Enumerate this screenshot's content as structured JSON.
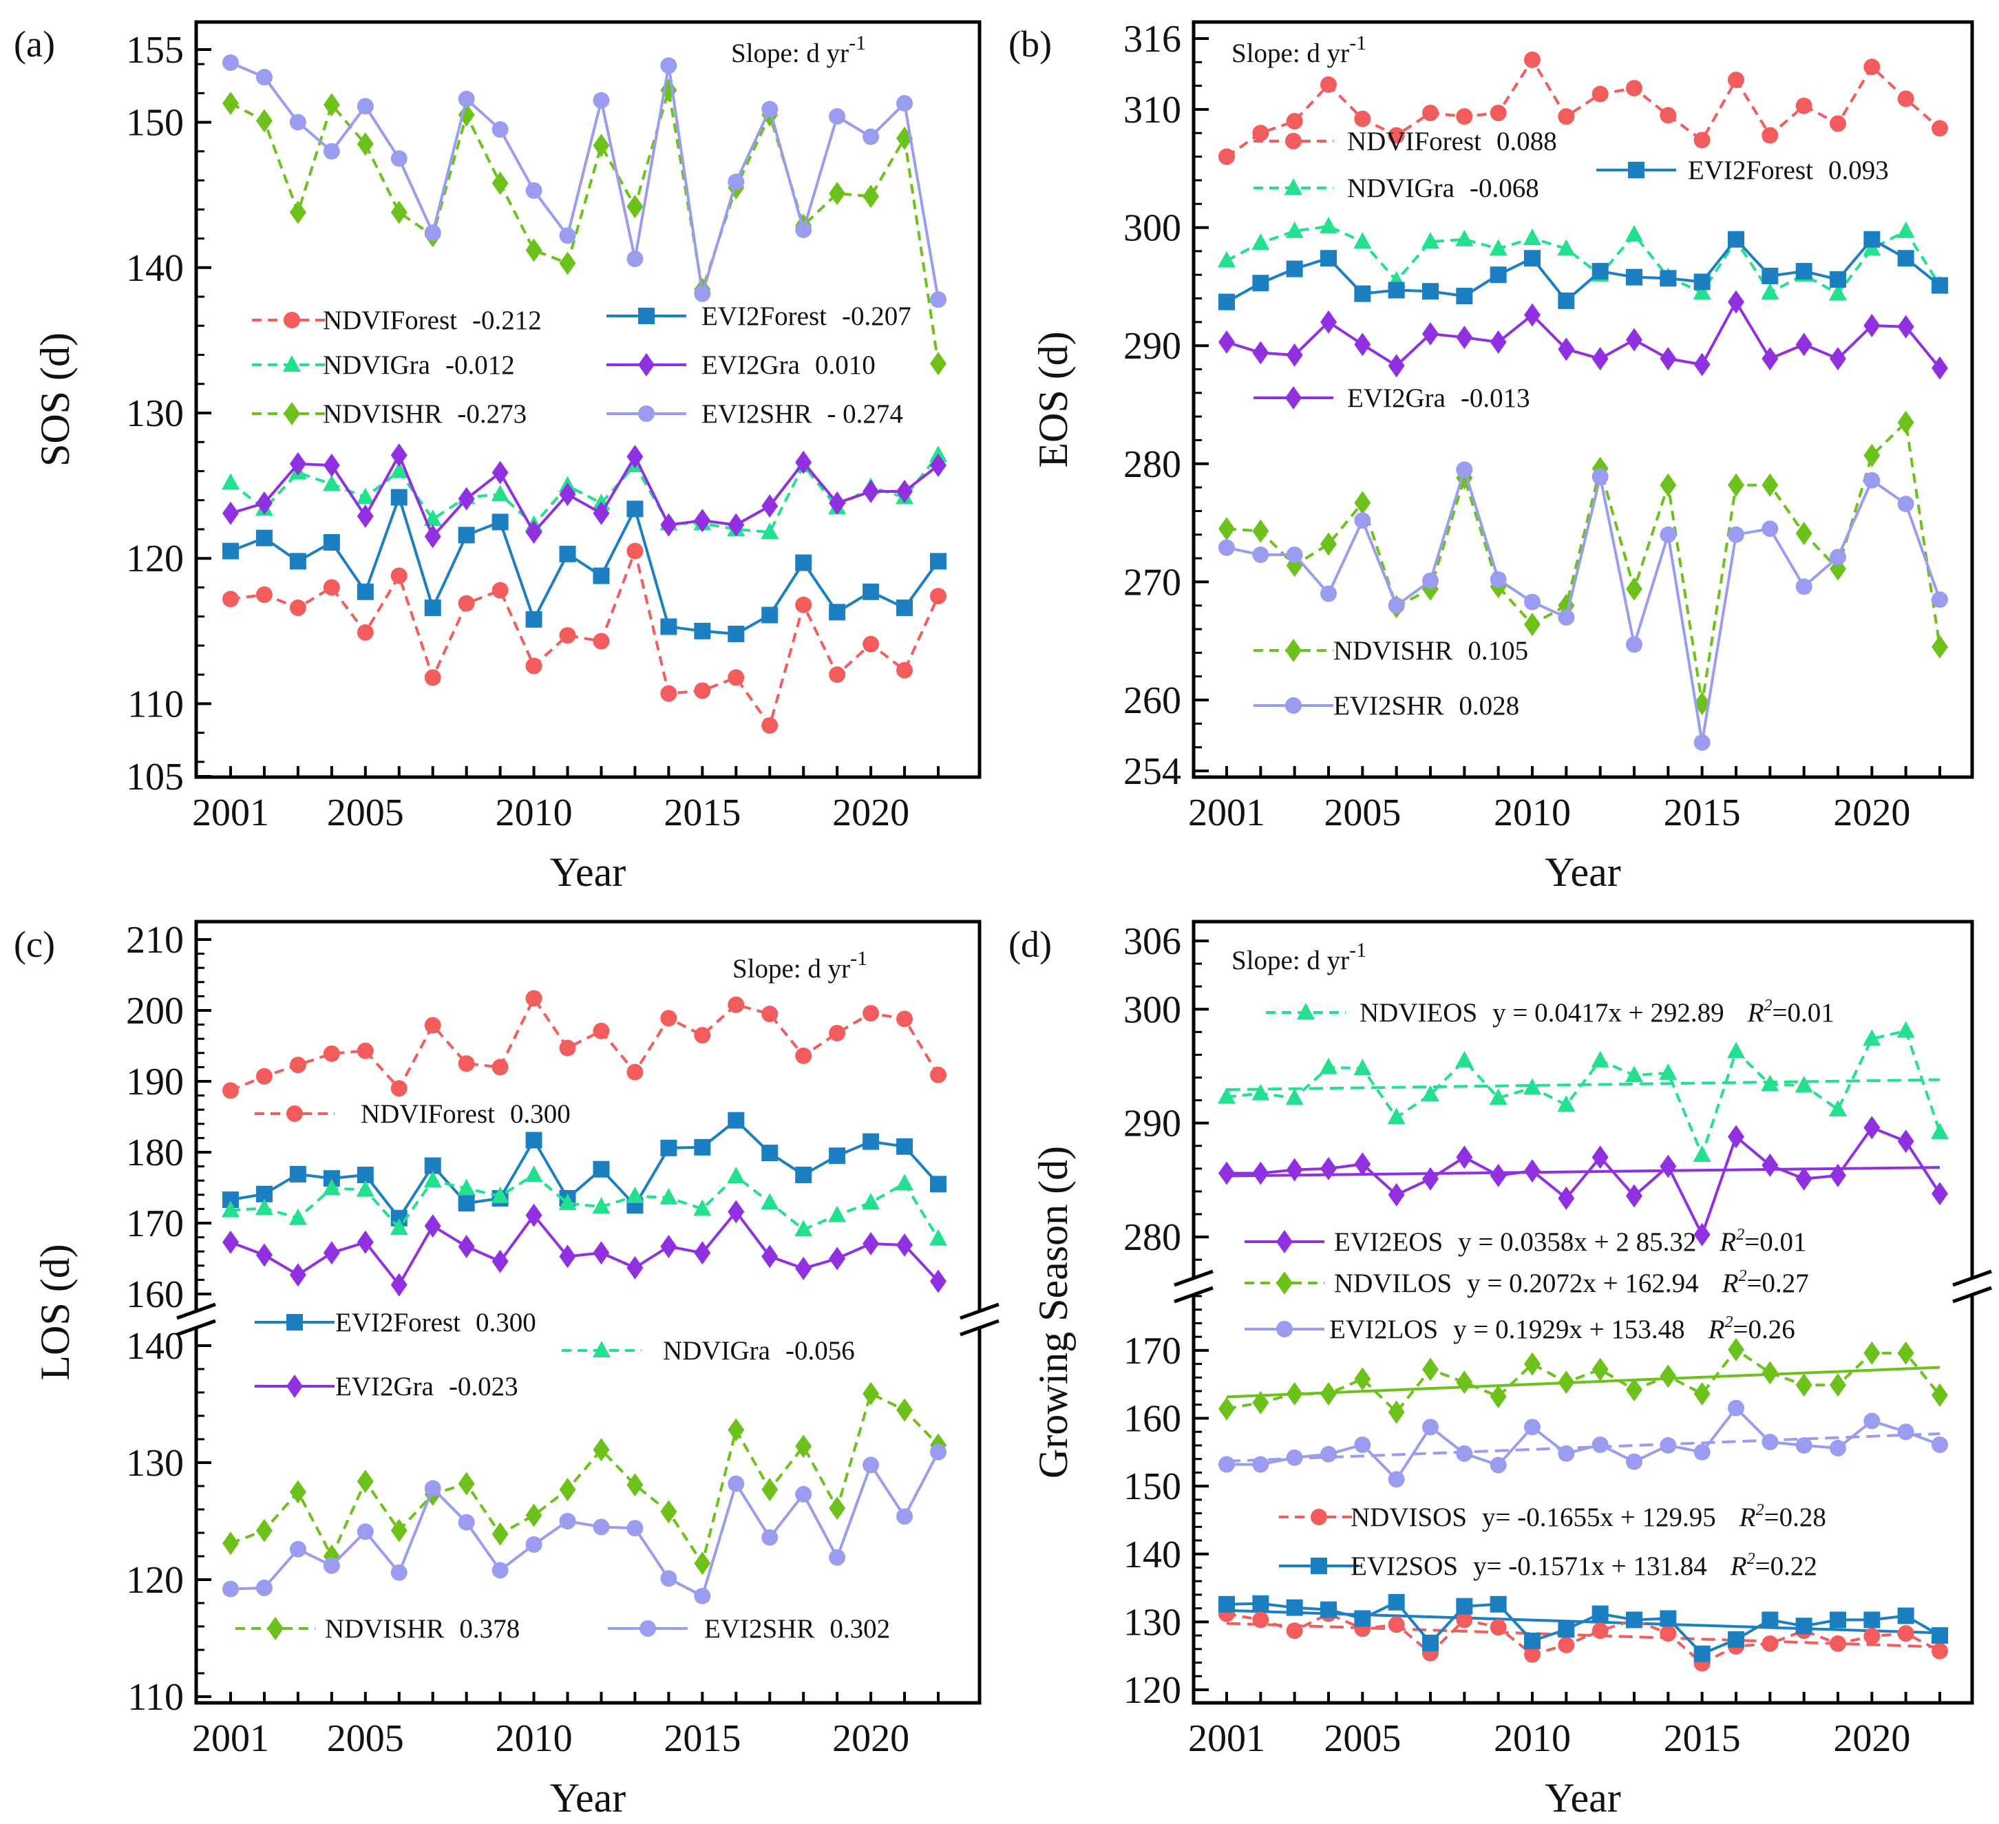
{
  "chart_data": [
    {
      "id": "a",
      "type": "line",
      "panel_label": "(a)",
      "xlabel": "Year",
      "ylabel": "SOS (d)",
      "slope_label": "Slope: d yr",
      "slope_sup": "-1",
      "x": [
        2001,
        2002,
        2003,
        2004,
        2005,
        2006,
        2007,
        2008,
        2009,
        2010,
        2011,
        2012,
        2013,
        2014,
        2015,
        2016,
        2017,
        2018,
        2019,
        2020,
        2021,
        2022
      ],
      "xticks": [
        "2001",
        "2005",
        "2010",
        "2015",
        "2020"
      ],
      "yticks": [
        105,
        110,
        120,
        130,
        140,
        150,
        155
      ],
      "ylim": [
        105,
        155
      ],
      "y_minor_step": 2,
      "series": [
        {
          "name": "NDVIForest",
          "slope": "-0.212",
          "color": "#f25c5c",
          "dash": true,
          "marker": "circle",
          "values": [
            117.2,
            117.5,
            116.6,
            118.0,
            114.9,
            118.8,
            111.8,
            116.9,
            117.8,
            112.6,
            114.7,
            114.3,
            120.5,
            110.7,
            110.9,
            111.8,
            108.5,
            116.8,
            112.0,
            114.1,
            112.3,
            117.4
          ]
        },
        {
          "name": "EVI2Forest",
          "slope": "-0.207",
          "color": "#1b7fc2",
          "dash": false,
          "marker": "square",
          "values": [
            120.5,
            121.4,
            119.8,
            121.1,
            117.7,
            124.2,
            116.6,
            121.6,
            122.5,
            115.8,
            120.3,
            118.8,
            123.4,
            115.3,
            115.0,
            114.8,
            116.1,
            119.7,
            116.3,
            117.7,
            116.6,
            119.8
          ]
        },
        {
          "name": "NDVIGra",
          "slope": "-0.012",
          "color": "#22e08e",
          "dash": true,
          "marker": "triangle",
          "values": [
            125.2,
            123.4,
            125.9,
            125.1,
            124.2,
            126.0,
            122.7,
            124.2,
            124.4,
            122.3,
            125.0,
            123.8,
            126.4,
            122.4,
            122.4,
            122.0,
            121.8,
            126.4,
            123.5,
            124.9,
            124.2,
            127.1
          ]
        },
        {
          "name": "EVI2Gra",
          "slope": "0.010",
          "color": "#9030e0",
          "dash": false,
          "marker": "diamond",
          "values": [
            123.1,
            123.8,
            126.5,
            126.4,
            122.9,
            127.1,
            121.5,
            124.1,
            125.9,
            121.8,
            124.4,
            123.1,
            127.0,
            122.3,
            122.6,
            122.3,
            123.6,
            126.6,
            123.8,
            124.6,
            124.6,
            126.4
          ]
        },
        {
          "name": "NDVISHR",
          "slope": "-0.273",
          "color": "#6cc21a",
          "dash": true,
          "marker": "diamond",
          "values": [
            151.3,
            150.1,
            143.8,
            151.2,
            148.5,
            143.8,
            142.2,
            150.5,
            145.8,
            141.2,
            140.3,
            148.4,
            144.2,
            152.2,
            138.5,
            145.5,
            150.5,
            142.9,
            145.1,
            144.9,
            148.9,
            133.4
          ]
        },
        {
          "name": "EVI2SHR",
          "slope": "- 0.274",
          "color": "#9a9cf0",
          "dash": false,
          "marker": "circle",
          "values": [
            154.1,
            153.1,
            150.0,
            148.0,
            151.1,
            147.5,
            142.4,
            151.6,
            149.5,
            145.3,
            142.2,
            151.5,
            140.6,
            153.9,
            138.2,
            145.9,
            150.9,
            142.6,
            150.4,
            149.0,
            151.3,
            137.8
          ]
        }
      ]
    },
    {
      "id": "b",
      "type": "line",
      "panel_label": "(b)",
      "xlabel": "Year",
      "ylabel": "EOS (d)",
      "slope_label": "Slope: d yr",
      "slope_sup": "-1",
      "x": [
        2001,
        2002,
        2003,
        2004,
        2005,
        2006,
        2007,
        2008,
        2009,
        2010,
        2011,
        2012,
        2013,
        2014,
        2015,
        2016,
        2017,
        2018,
        2019,
        2020,
        2021,
        2022
      ],
      "xticks": [
        "2001",
        "2005",
        "2010",
        "2015",
        "2020"
      ],
      "yticks": [
        254,
        260,
        270,
        280,
        290,
        300,
        310,
        316
      ],
      "ylim": [
        254,
        316
      ],
      "y_minor_step": 2,
      "series": [
        {
          "name": "NDVIForest",
          "slope": "0.088",
          "color": "#f25c5c",
          "dash": true,
          "marker": "circle",
          "values": [
            306.0,
            308.0,
            309.0,
            312.1,
            309.2,
            307.8,
            309.7,
            309.4,
            309.7,
            314.2,
            309.4,
            311.3,
            311.8,
            309.5,
            307.4,
            312.5,
            307.8,
            310.3,
            308.8,
            313.6,
            310.9,
            308.4
          ]
        },
        {
          "name": "NDVIGra",
          "slope": "-0.068",
          "color": "#22e08e",
          "dash": true,
          "marker": "triangle",
          "values": [
            297.2,
            298.7,
            299.7,
            300.1,
            298.8,
            295.5,
            298.8,
            299.0,
            298.2,
            299.1,
            298.2,
            296.0,
            299.4,
            295.8,
            294.5,
            298.9,
            294.5,
            296.0,
            294.4,
            298.2,
            299.7,
            295.1
          ]
        },
        {
          "name": "EVI2Forest",
          "slope": "0.093",
          "color": "#1b7fc2",
          "dash": false,
          "marker": "square",
          "values": [
            293.7,
            295.3,
            296.5,
            297.4,
            294.4,
            294.7,
            294.6,
            294.2,
            296.0,
            297.4,
            293.8,
            296.3,
            295.8,
            295.7,
            295.4,
            299.0,
            295.9,
            296.3,
            295.6,
            299.0,
            297.4,
            295.1
          ]
        },
        {
          "name": "EVI2Gra",
          "slope": "-0.013",
          "color": "#9030e0",
          "dash": false,
          "marker": "diamond",
          "values": [
            290.3,
            289.4,
            289.2,
            292.0,
            290.1,
            288.3,
            291.0,
            290.7,
            290.3,
            292.6,
            289.7,
            288.9,
            290.5,
            288.9,
            288.4,
            293.7,
            288.9,
            290.1,
            288.9,
            291.7,
            291.6,
            288.1
          ]
        },
        {
          "name": "NDVISHR",
          "slope": "0.105",
          "color": "#6cc21a",
          "dash": true,
          "marker": "diamond",
          "values": [
            274.5,
            274.3,
            271.4,
            273.2,
            276.7,
            267.9,
            269.4,
            278.8,
            269.6,
            266.4,
            268.0,
            279.6,
            269.4,
            278.2,
            259.7,
            278.2,
            278.2,
            274.1,
            271.1,
            280.7,
            283.5,
            264.5
          ]
        },
        {
          "name": "EVI2SHR",
          "slope": "0.028",
          "color": "#9a9cf0",
          "dash": false,
          "marker": "circle",
          "values": [
            272.9,
            272.3,
            272.3,
            269.0,
            275.2,
            268.0,
            270.1,
            279.5,
            270.2,
            268.3,
            267.0,
            278.9,
            264.7,
            274.0,
            256.4,
            274.0,
            274.5,
            269.6,
            272.1,
            278.6,
            276.6,
            268.5
          ]
        }
      ]
    },
    {
      "id": "c",
      "type": "line",
      "panel_label": "(c)",
      "xlabel": "Year",
      "ylabel": "LOS (d)",
      "slope_label": "Slope: d yr",
      "slope_sup": "-1",
      "x": [
        2001,
        2002,
        2003,
        2004,
        2005,
        2006,
        2007,
        2008,
        2009,
        2010,
        2011,
        2012,
        2013,
        2014,
        2015,
        2016,
        2017,
        2018,
        2019,
        2020,
        2021,
        2022
      ],
      "xticks": [
        "2001",
        "2005",
        "2010",
        "2015",
        "2020"
      ],
      "yticks": [
        110,
        120,
        130,
        140,
        160,
        170,
        180,
        190,
        200,
        210
      ],
      "y_break": [
        [
          110,
          140
        ],
        [
          160,
          210
        ]
      ],
      "y_minor_step": 2,
      "series": [
        {
          "name": "NDVIForest",
          "slope": "0.300",
          "color": "#f25c5c",
          "dash": true,
          "marker": "circle",
          "values": [
            188.7,
            190.7,
            192.3,
            193.9,
            194.3,
            189.0,
            197.9,
            192.5,
            192.0,
            201.7,
            194.7,
            197.1,
            191.3,
            198.9,
            196.5,
            200.8,
            199.5,
            193.6,
            196.8,
            199.6,
            198.8,
            190.9
          ]
        },
        {
          "name": "EVI2Forest",
          "slope": "0.300",
          "color": "#1b7fc2",
          "dash": false,
          "marker": "square",
          "values": [
            173.3,
            174.1,
            176.9,
            176.3,
            176.8,
            170.7,
            178.1,
            172.8,
            173.5,
            181.7,
            173.5,
            177.6,
            172.5,
            180.6,
            180.7,
            184.5,
            179.9,
            176.8,
            179.5,
            181.5,
            180.8,
            175.5
          ]
        },
        {
          "name": "NDVIGra",
          "slope": "-0.056",
          "color": "#22e08e",
          "dash": true,
          "marker": "triangle",
          "values": [
            171.8,
            172.1,
            170.7,
            174.9,
            174.7,
            169.3,
            176.0,
            174.9,
            173.8,
            176.8,
            172.8,
            172.3,
            173.8,
            173.6,
            172.0,
            176.6,
            172.9,
            169.1,
            171.1,
            172.9,
            175.6,
            167.8
          ]
        },
        {
          "name": "EVI2Gra",
          "slope": "-0.023",
          "color": "#9030e0",
          "dash": false,
          "marker": "diamond",
          "values": [
            167.3,
            165.5,
            162.7,
            165.8,
            167.3,
            161.3,
            169.6,
            166.7,
            164.6,
            171.1,
            165.3,
            165.8,
            163.7,
            166.7,
            165.8,
            171.6,
            165.3,
            163.6,
            165.0,
            167.1,
            166.9,
            161.8
          ]
        },
        {
          "name": "NDVISHR",
          "slope": "0.378",
          "color": "#6cc21a",
          "dash": true,
          "marker": "diamond",
          "values": [
            123.1,
            124.2,
            127.5,
            122.0,
            128.4,
            124.2,
            127.3,
            128.2,
            123.9,
            125.5,
            127.7,
            131.1,
            128.1,
            125.8,
            121.4,
            132.8,
            127.7,
            131.4,
            126.1,
            135.9,
            134.5,
            131.5
          ]
        },
        {
          "name": "EVI2SHR",
          "slope": "0.302",
          "color": "#9a9cf0",
          "dash": false,
          "marker": "circle",
          "values": [
            119.2,
            119.3,
            122.6,
            121.2,
            124.1,
            120.6,
            127.8,
            124.9,
            120.8,
            123.0,
            125.0,
            124.5,
            124.4,
            120.1,
            118.6,
            128.2,
            123.6,
            127.3,
            121.9,
            129.8,
            125.4,
            130.9
          ]
        }
      ]
    },
    {
      "id": "d",
      "type": "line",
      "panel_label": "(d)",
      "xlabel": "Year",
      "ylabel": "Growing Season (d)",
      "slope_label": "Slope: d yr",
      "slope_sup": "-1",
      "x": [
        2001,
        2002,
        2003,
        2004,
        2005,
        2006,
        2007,
        2008,
        2009,
        2010,
        2011,
        2012,
        2013,
        2014,
        2015,
        2016,
        2017,
        2018,
        2019,
        2020,
        2021,
        2022
      ],
      "xticks": [
        "2001",
        "2005",
        "2010",
        "2015",
        "2020"
      ],
      "yticks": [
        120,
        130,
        140,
        150,
        160,
        170,
        280,
        290,
        300,
        306
      ],
      "y_break": [
        [
          120,
          178
        ],
        [
          276.5,
          306
        ]
      ],
      "y_minor_step": 2,
      "r2_symbol": "R",
      "r2_sup": "2",
      "series": [
        {
          "name": "NDVIEOS",
          "eq": "y = 0.0417x + 292.89",
          "r2": "=0.01",
          "trend": {
            "slope": 0.0417,
            "intercept": 292.89,
            "dash": true
          },
          "color": "#22e08e",
          "dash": true,
          "marker": "triangle",
          "values": [
            292.3,
            292.6,
            292.2,
            294.9,
            294.8,
            290.5,
            292.5,
            295.5,
            292.2,
            293.1,
            291.6,
            295.5,
            294.2,
            294.4,
            287.2,
            296.3,
            293.4,
            293.3,
            291.2,
            297.4,
            298.1,
            289.2
          ]
        },
        {
          "name": "EVI2EOS",
          "eq": "y = 0.0358x + 2 85.32",
          "r2": "=0.01",
          "trend": {
            "slope": 0.0358,
            "intercept": 285.32,
            "dash": false
          },
          "color": "#9030e0",
          "dash": false,
          "marker": "diamond",
          "values": [
            285.6,
            285.6,
            285.9,
            286.0,
            286.4,
            283.7,
            285.1,
            287.0,
            285.4,
            285.8,
            283.4,
            287.0,
            283.6,
            286.2,
            280.2,
            288.8,
            286.3,
            285.1,
            285.4,
            289.6,
            288.4,
            283.8
          ]
        },
        {
          "name": "NDVILOS",
          "eq": "y = 0.2072x + 162.94",
          "r2": "=0.27",
          "trend": {
            "slope": 0.2072,
            "intercept": 162.94,
            "dash": false
          },
          "color": "#6cc21a",
          "dash": true,
          "marker": "diamond",
          "values": [
            161.4,
            162.3,
            163.6,
            163.6,
            165.8,
            160.9,
            167.2,
            165.3,
            163.2,
            168.0,
            165.3,
            167.2,
            164.2,
            166.2,
            163.6,
            170.1,
            166.7,
            164.9,
            164.9,
            169.6,
            169.6,
            163.4
          ]
        },
        {
          "name": "EVI2LOS",
          "eq": "y = 0.1929x + 153.48",
          "r2": "=0.26",
          "trend": {
            "slope": 0.1929,
            "intercept": 153.48,
            "dash": true
          },
          "color": "#9a9cf0",
          "dash": false,
          "marker": "circle",
          "values": [
            153.2,
            153.2,
            154.2,
            154.7,
            156.1,
            151.0,
            158.7,
            154.8,
            153.1,
            158.7,
            154.8,
            156.1,
            153.6,
            156.0,
            155.0,
            161.5,
            156.5,
            156.0,
            155.6,
            159.6,
            158.0,
            156.1
          ]
        },
        {
          "name": "NDVISOS",
          "eq": "y= -0.1655x + 129.95",
          "r2": "=0.28",
          "trend": {
            "slope": -0.1655,
            "intercept": 129.95,
            "dash": true
          },
          "color": "#f25c5c",
          "dash": true,
          "marker": "circle",
          "values": [
            131.2,
            130.3,
            128.7,
            131.2,
            129.0,
            129.6,
            125.4,
            130.3,
            129.2,
            125.2,
            126.6,
            128.7,
            130.3,
            128.3,
            123.9,
            126.4,
            126.8,
            128.7,
            126.8,
            127.9,
            128.3,
            125.7
          ]
        },
        {
          "name": "EVI2SOS",
          "eq": "y=  -0.1571x + 131.84",
          "r2": "=0.22",
          "trend": {
            "slope": -0.1571,
            "intercept": 131.84,
            "dash": false
          },
          "color": "#1b7fc2",
          "dash": false,
          "marker": "square",
          "values": [
            132.6,
            132.7,
            132.1,
            131.8,
            130.5,
            132.9,
            126.9,
            132.3,
            132.6,
            127.2,
            128.9,
            131.2,
            130.3,
            130.5,
            125.3,
            127.4,
            130.3,
            129.4,
            130.3,
            130.3,
            130.9,
            128.0
          ]
        }
      ]
    }
  ]
}
